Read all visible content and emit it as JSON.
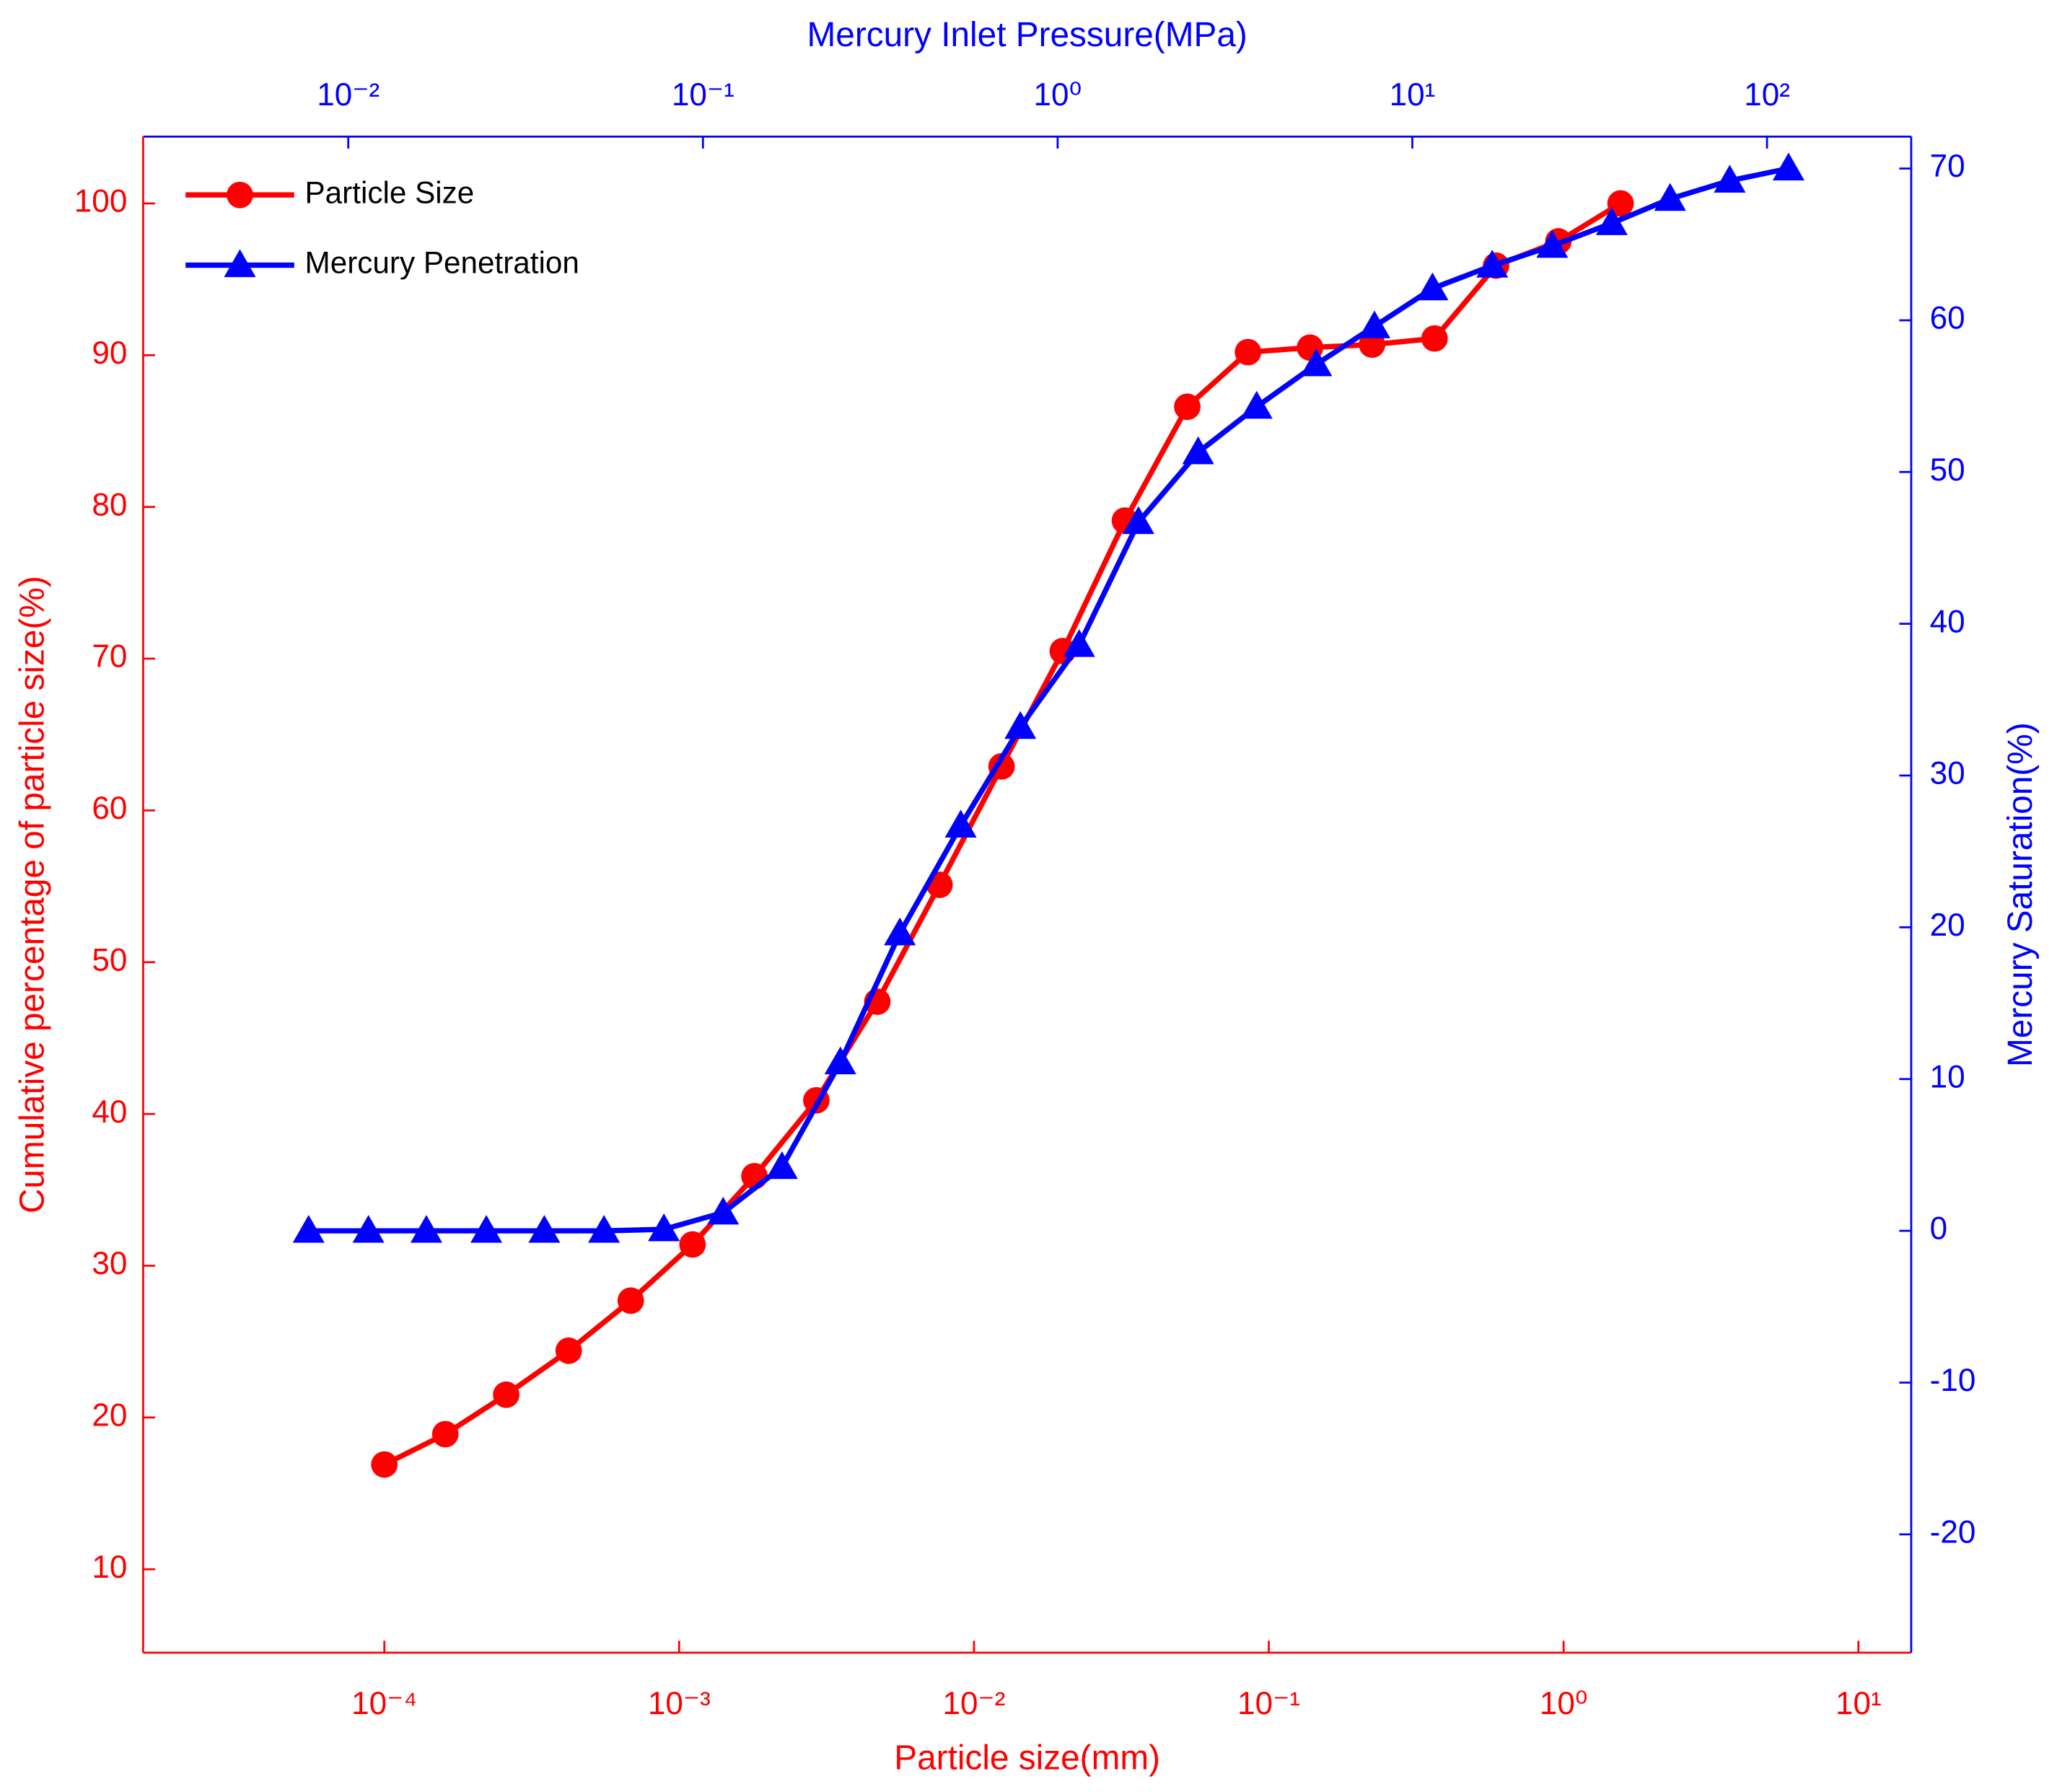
{
  "chart_data": {
    "type": "line",
    "xlabel": "Particle size(mm)",
    "x2label": "Mercury Inlet Pressure(MPa)",
    "ylabel": "Cumulative percentage of particle size(%)",
    "y2label": "Mercury Saturation(%)",
    "xscale": "log",
    "x2scale": "log",
    "xlim": [
      1.52e-05,
      15.1
    ],
    "x2lim": [
      0.00264,
      255
    ],
    "ylim": [
      4.5,
      104.4
    ],
    "y2lim": [
      -27.8,
      72.1
    ],
    "xticks": [
      {
        "value": 0.0001,
        "label": "10⁻⁴"
      },
      {
        "value": 0.001,
        "label": "10⁻³"
      },
      {
        "value": 0.01,
        "label": "10⁻²"
      },
      {
        "value": 0.1,
        "label": "10⁻¹"
      },
      {
        "value": 1,
        "label": "10⁰"
      },
      {
        "value": 10,
        "label": "10¹"
      }
    ],
    "x2ticks": [
      {
        "value": 0.01,
        "label": "10⁻²"
      },
      {
        "value": 0.1,
        "label": "10⁻¹"
      },
      {
        "value": 1,
        "label": "10⁰"
      },
      {
        "value": 10,
        "label": "10¹"
      },
      {
        "value": 100,
        "label": "10²"
      }
    ],
    "yticks": [
      10,
      20,
      30,
      40,
      50,
      60,
      70,
      80,
      90,
      100
    ],
    "y2ticks": [
      -20,
      -10,
      0,
      10,
      20,
      30,
      40,
      50,
      60,
      70
    ],
    "axis_colors": {
      "x": "#ff0000",
      "x2": "#0000ff",
      "y": "#ff0000",
      "y2": "#0000ff"
    },
    "legend": "upper left",
    "series": [
      {
        "name": "Particle Size",
        "color": "#ff0000",
        "marker": "circle",
        "axis": "y",
        "xaxis": "x",
        "x": [
          0.0001,
          0.000161,
          0.000259,
          0.000422,
          0.000685,
          0.00111,
          0.0018,
          0.00292,
          0.0047,
          0.00764,
          0.0124,
          0.02,
          0.0325,
          0.0529,
          0.085,
          0.138,
          0.224,
          0.365,
          0.59,
          0.96,
          1.56
        ],
        "values": [
          16.9,
          18.9,
          21.5,
          24.4,
          27.7,
          31.4,
          35.9,
          40.9,
          47.4,
          55.1,
          62.9,
          70.5,
          79.1,
          86.6,
          90.2,
          90.5,
          90.7,
          91.1,
          95.9,
          97.5,
          100
        ]
      },
      {
        "name": "Mercury Penetration",
        "color": "#0000ff",
        "marker": "triangle",
        "axis": "y2",
        "xaxis": "x2",
        "x": [
          0.00773,
          0.0114,
          0.0166,
          0.0245,
          0.0357,
          0.0526,
          0.0776,
          0.114,
          0.167,
          0.244,
          0.359,
          0.533,
          0.785,
          1.15,
          1.69,
          2.49,
          3.64,
          5.36,
          7.82,
          11.4,
          16.8,
          24.8,
          36.5,
          53.3,
          78.5,
          115
        ],
        "values": [
          0,
          0,
          0,
          0,
          0,
          0,
          0.1,
          1.2,
          4.2,
          11.1,
          19.6,
          26.7,
          33.2,
          38.6,
          46.7,
          51.3,
          54.3,
          57.1,
          59.6,
          62.1,
          63.6,
          64.9,
          66.4,
          68.0,
          69.2,
          70
        ]
      }
    ]
  }
}
